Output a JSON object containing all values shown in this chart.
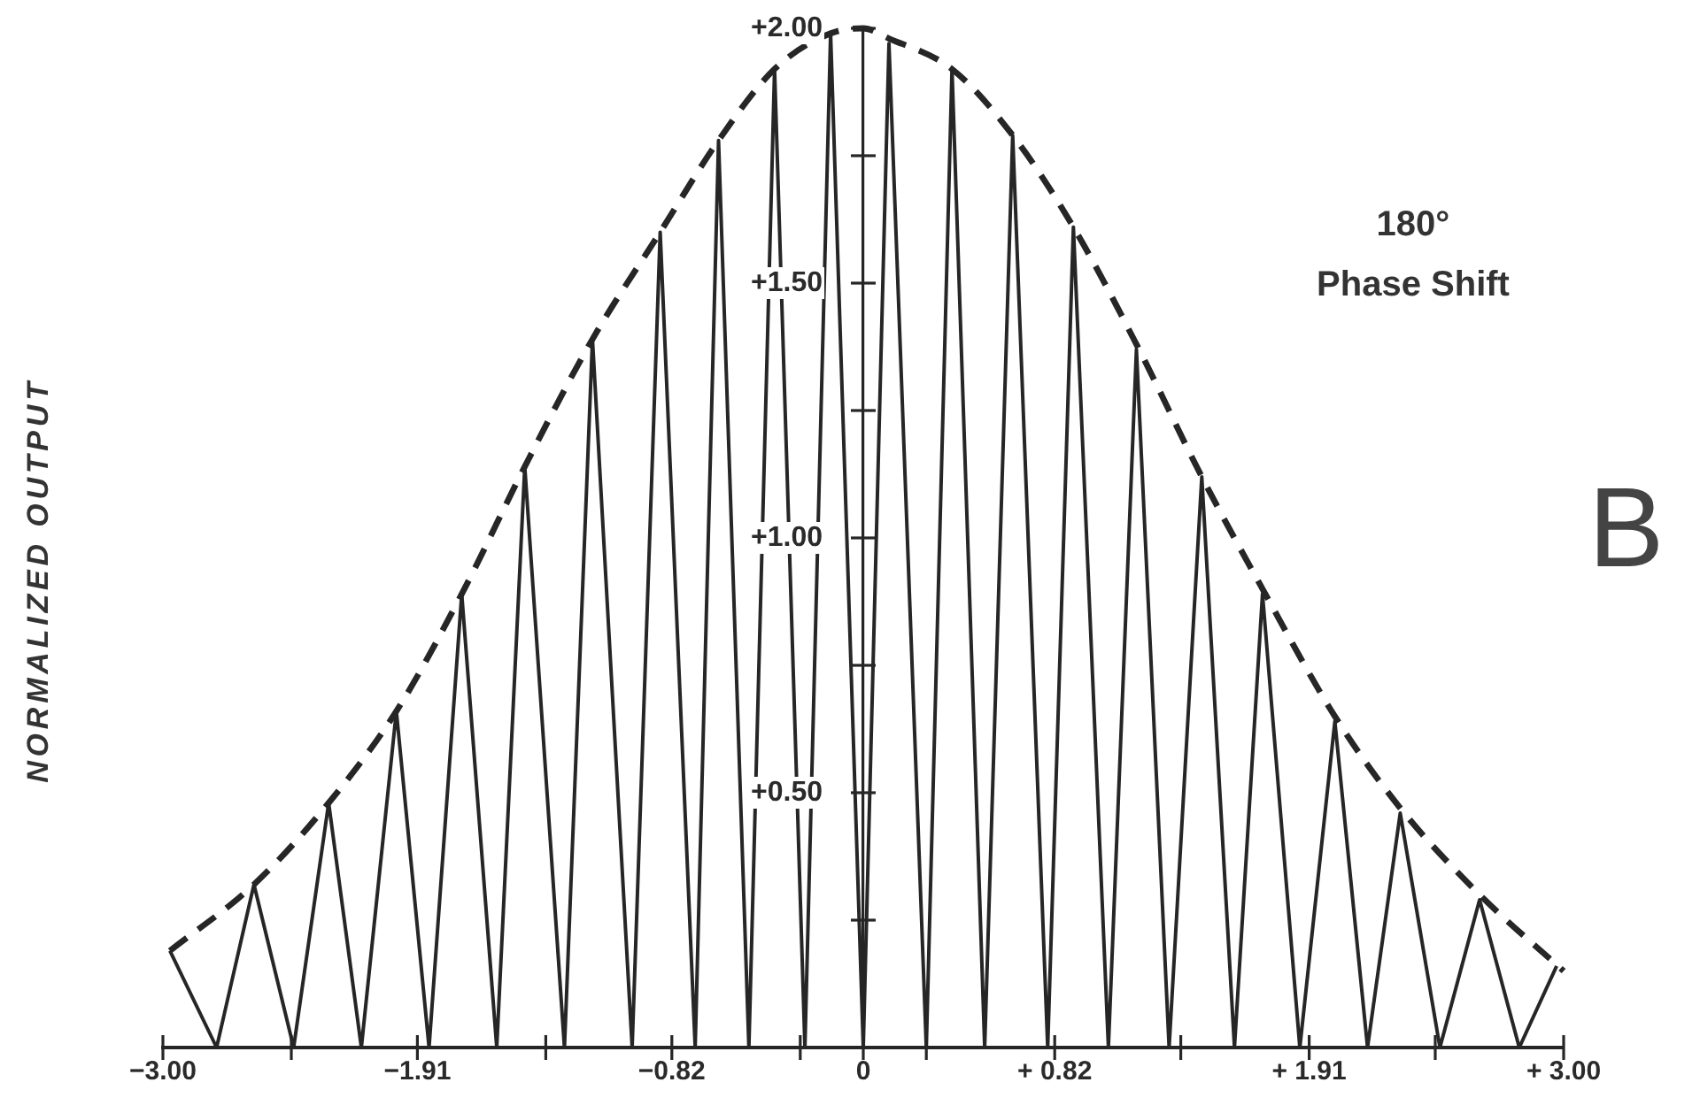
{
  "chart_data": {
    "type": "line",
    "ylabel": "NORMALIZED OUTPUT",
    "annotations": [
      "180°\nPhase Shift",
      "B"
    ],
    "xlim": [
      -3,
      3
    ],
    "ylim": [
      0,
      2
    ],
    "xticks": [
      {
        "value": -3,
        "label": "−3.00"
      },
      {
        "value": -2.45,
        "label": null
      },
      {
        "value": -1.91,
        "label": "−1.91"
      },
      {
        "value": -1.36,
        "label": null
      },
      {
        "value": -0.82,
        "label": "−0.82"
      },
      {
        "value": -0.27,
        "label": null
      },
      0,
      {
        "value": 0.27,
        "label": null
      },
      {
        "value": 0.82,
        "label": "+ 0.82"
      },
      {
        "value": 1.36,
        "label": null
      },
      {
        "value": 1.91,
        "label": "+ 1.91"
      },
      {
        "value": 2.45,
        "label": null
      },
      {
        "value": 3,
        "label": "+ 3.00"
      }
    ],
    "yticks": [
      {
        "value": 0.25,
        "label": null
      },
      {
        "value": 0.5,
        "label": "+0.50"
      },
      {
        "value": 0.75,
        "label": null
      },
      {
        "value": 1,
        "label": "+1.00"
      },
      {
        "value": 1.25,
        "label": null
      },
      {
        "value": 1.5,
        "label": "+1.50"
      },
      {
        "value": 1.75,
        "label": null
      },
      {
        "value": 2,
        "label": "+2.00"
      }
    ],
    "marker": "none",
    "series": [
      {
        "color": "#262626",
        "line_style": "solid",
        "x": [
          -2.97,
          -2.77,
          -2.61,
          -2.44,
          -2.29,
          -2.15,
          -2.0,
          -1.86,
          -1.72,
          -1.57,
          -1.45,
          -1.28,
          -1.16,
          -0.99,
          -0.87,
          -0.72,
          -0.62,
          -0.49,
          -0.38,
          -0.25,
          -0.14,
          0,
          0.11,
          0.27,
          0.38,
          0.52,
          0.64,
          0.79,
          0.9,
          1.05,
          1.17,
          1.31,
          1.45,
          1.59,
          1.71,
          1.87,
          2.02,
          2.16,
          2.3,
          2.47,
          2.64,
          2.81,
          2.97
        ],
        "values": [
          0.19,
          0,
          0.32,
          0,
          0.48,
          0,
          0.66,
          0,
          0.89,
          0,
          1.14,
          0,
          1.39,
          0,
          1.6,
          0,
          1.78,
          0,
          1.92,
          0,
          1.99,
          0,
          1.97,
          0,
          1.92,
          0,
          1.79,
          0,
          1.61,
          0,
          1.37,
          0,
          1.12,
          0,
          0.89,
          0,
          0.64,
          0,
          0.46,
          0,
          0.29,
          0,
          0.16
        ]
      },
      {
        "color": "#262626",
        "line_style": "dashed",
        "x": [
          -2.97,
          -2.61,
          -2.29,
          -2.0,
          -1.72,
          -1.45,
          -1.16,
          -0.87,
          -0.62,
          -0.38,
          -0.14,
          0,
          0.11,
          0.38,
          0.64,
          0.9,
          1.17,
          1.45,
          1.71,
          2.02,
          2.3,
          2.64,
          3.0
        ],
        "values": [
          0.19,
          0.32,
          0.48,
          0.66,
          0.89,
          1.14,
          1.39,
          1.6,
          1.78,
          1.92,
          1.99,
          2.0,
          1.98,
          1.92,
          1.79,
          1.61,
          1.38,
          1.12,
          0.9,
          0.65,
          0.47,
          0.3,
          0.15
        ]
      }
    ]
  }
}
